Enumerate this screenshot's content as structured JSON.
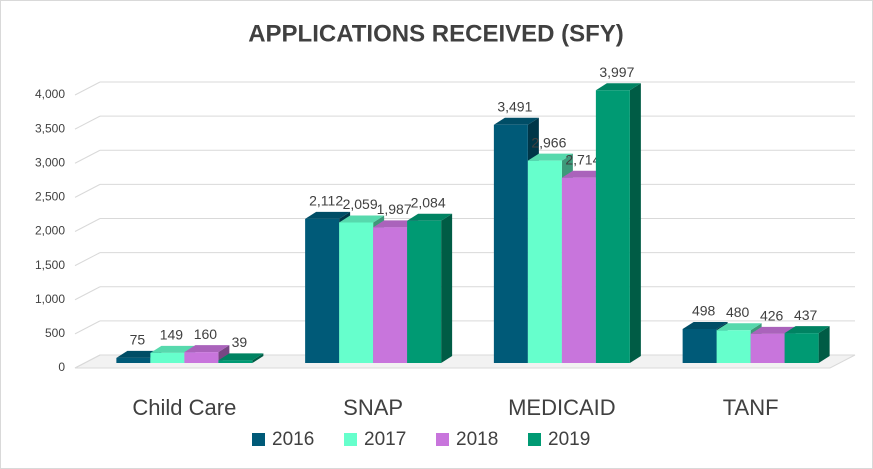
{
  "chart_data": {
    "type": "bar3d",
    "title": "APPLICATIONS RECEIVED (SFY)",
    "categories": [
      "Child Care",
      "SNAP",
      "MEDICAID",
      "TANF"
    ],
    "series": [
      {
        "name": "2016",
        "color": "#005a78",
        "values": [
          75,
          2112,
          3491,
          498
        ],
        "value_labels": [
          "75",
          "2,112",
          "3,491",
          "498"
        ]
      },
      {
        "name": "2017",
        "color": "#66ffcc",
        "values": [
          149,
          2059,
          2966,
          480
        ],
        "value_labels": [
          "149",
          "2,059",
          "2,966",
          "480"
        ]
      },
      {
        "name": "2018",
        "color": "#c875dc",
        "values": [
          160,
          1987,
          2714,
          426
        ],
        "value_labels": [
          "160",
          "1,987",
          "2,714",
          "426"
        ]
      },
      {
        "name": "2019",
        "color": "#009a73",
        "values": [
          39,
          2084,
          3997,
          437
        ],
        "value_labels": [
          "39",
          "2,084",
          "3,997",
          "437"
        ]
      }
    ],
    "ylim": [
      0,
      4000
    ],
    "yticks": [
      0,
      500,
      {
        "value": 1000,
        "label": "1,000"
      },
      {
        "value": 1500,
        "label": "1,500"
      },
      {
        "value": 2000,
        "label": "2,000"
      },
      {
        "value": 2500,
        "label": "2,500"
      },
      {
        "value": 3000,
        "label": "3,000"
      },
      {
        "value": 3500,
        "label": "3,500"
      },
      {
        "value": 4000,
        "label": "4,000"
      }
    ],
    "grid": true,
    "legend": "bottom"
  }
}
